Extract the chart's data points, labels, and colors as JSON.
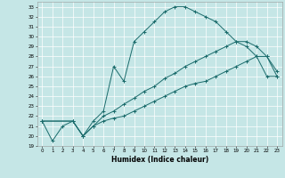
{
  "xlabel": "Humidex (Indice chaleur)",
  "bg_color": "#c5e6e6",
  "grid_color": "#ffffff",
  "line_color": "#1a6b6b",
  "xlim": [
    -0.5,
    23.5
  ],
  "ylim": [
    19,
    33.5
  ],
  "yticks": [
    19,
    20,
    21,
    22,
    23,
    24,
    25,
    26,
    27,
    28,
    29,
    30,
    31,
    32,
    33
  ],
  "xticks": [
    0,
    1,
    2,
    3,
    4,
    5,
    6,
    7,
    8,
    9,
    10,
    11,
    12,
    13,
    14,
    15,
    16,
    17,
    18,
    19,
    20,
    21,
    22,
    23
  ],
  "line1_x": [
    0,
    1,
    2,
    3,
    4,
    5,
    6,
    7,
    8,
    9,
    10,
    11,
    12,
    13,
    14,
    15,
    16,
    17,
    18,
    19,
    20,
    21,
    22,
    23
  ],
  "line1_y": [
    21.5,
    19.5,
    21.0,
    21.5,
    20.0,
    21.5,
    22.5,
    27.0,
    25.5,
    29.5,
    30.5,
    31.5,
    32.5,
    33.0,
    33.0,
    32.5,
    32.0,
    31.5,
    30.5,
    29.5,
    29.0,
    28.0,
    26.0,
    26.0
  ],
  "line2_x": [
    0,
    3,
    4,
    5,
    6,
    7,
    8,
    9,
    10,
    11,
    12,
    13,
    14,
    15,
    16,
    17,
    18,
    19,
    20,
    21,
    22,
    23
  ],
  "line2_y": [
    21.5,
    21.5,
    20.0,
    21.0,
    22.0,
    22.5,
    23.2,
    23.8,
    24.5,
    25.0,
    25.8,
    26.3,
    27.0,
    27.5,
    28.0,
    28.5,
    29.0,
    29.5,
    29.5,
    29.0,
    28.0,
    26.5
  ],
  "line3_x": [
    0,
    3,
    4,
    5,
    6,
    7,
    8,
    9,
    10,
    11,
    12,
    13,
    14,
    15,
    16,
    17,
    18,
    19,
    20,
    21,
    22,
    23
  ],
  "line3_y": [
    21.5,
    21.5,
    20.0,
    21.0,
    21.5,
    21.8,
    22.0,
    22.5,
    23.0,
    23.5,
    24.0,
    24.5,
    25.0,
    25.3,
    25.5,
    26.0,
    26.5,
    27.0,
    27.5,
    28.0,
    28.0,
    26.0
  ]
}
